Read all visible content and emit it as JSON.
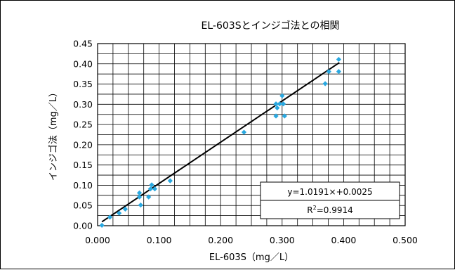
{
  "chart_data": {
    "type": "scatter",
    "title": "EL-603Sとインジゴ法との相関",
    "xlabel": "EL-603S（mg／L）",
    "ylabel": "インジゴ法（mg／L）",
    "xlim": [
      0.0,
      0.5
    ],
    "ylim": [
      0.0,
      0.45
    ],
    "x_tick_labels": [
      "0.000",
      "0.100",
      "0.200",
      "0.300",
      "0.400",
      "0.500"
    ],
    "y_tick_labels": [
      "0.00",
      "0.05",
      "0.10",
      "0.15",
      "0.20",
      "0.25",
      "0.30",
      "0.35",
      "0.40",
      "0.45"
    ],
    "grid": true,
    "point_color": "#29a8e0",
    "trendline_color": "#000000",
    "points": [
      {
        "x": 0.007,
        "y": 0.001
      },
      {
        "x": 0.02,
        "y": 0.021
      },
      {
        "x": 0.035,
        "y": 0.031
      },
      {
        "x": 0.045,
        "y": 0.041
      },
      {
        "x": 0.068,
        "y": 0.071
      },
      {
        "x": 0.068,
        "y": 0.081
      },
      {
        "x": 0.07,
        "y": 0.051
      },
      {
        "x": 0.083,
        "y": 0.071
      },
      {
        "x": 0.086,
        "y": 0.091
      },
      {
        "x": 0.088,
        "y": 0.101
      },
      {
        "x": 0.093,
        "y": 0.091
      },
      {
        "x": 0.118,
        "y": 0.111
      },
      {
        "x": 0.238,
        "y": 0.231
      },
      {
        "x": 0.29,
        "y": 0.301
      },
      {
        "x": 0.29,
        "y": 0.271
      },
      {
        "x": 0.292,
        "y": 0.291
      },
      {
        "x": 0.296,
        "y": 0.301
      },
      {
        "x": 0.3,
        "y": 0.321
      },
      {
        "x": 0.302,
        "y": 0.301
      },
      {
        "x": 0.304,
        "y": 0.271
      },
      {
        "x": 0.37,
        "y": 0.351
      },
      {
        "x": 0.376,
        "y": 0.381
      },
      {
        "x": 0.392,
        "y": 0.411
      },
      {
        "x": 0.392,
        "y": 0.381
      }
    ],
    "trendline": {
      "slope": 1.0191,
      "intercept": 0.0025,
      "x_range": [
        0.007,
        0.393
      ],
      "equation": "y=1.0191×+0.0025",
      "r2_prefix": "R",
      "r2_exp": "2",
      "r2_value": "=0.9914"
    }
  }
}
